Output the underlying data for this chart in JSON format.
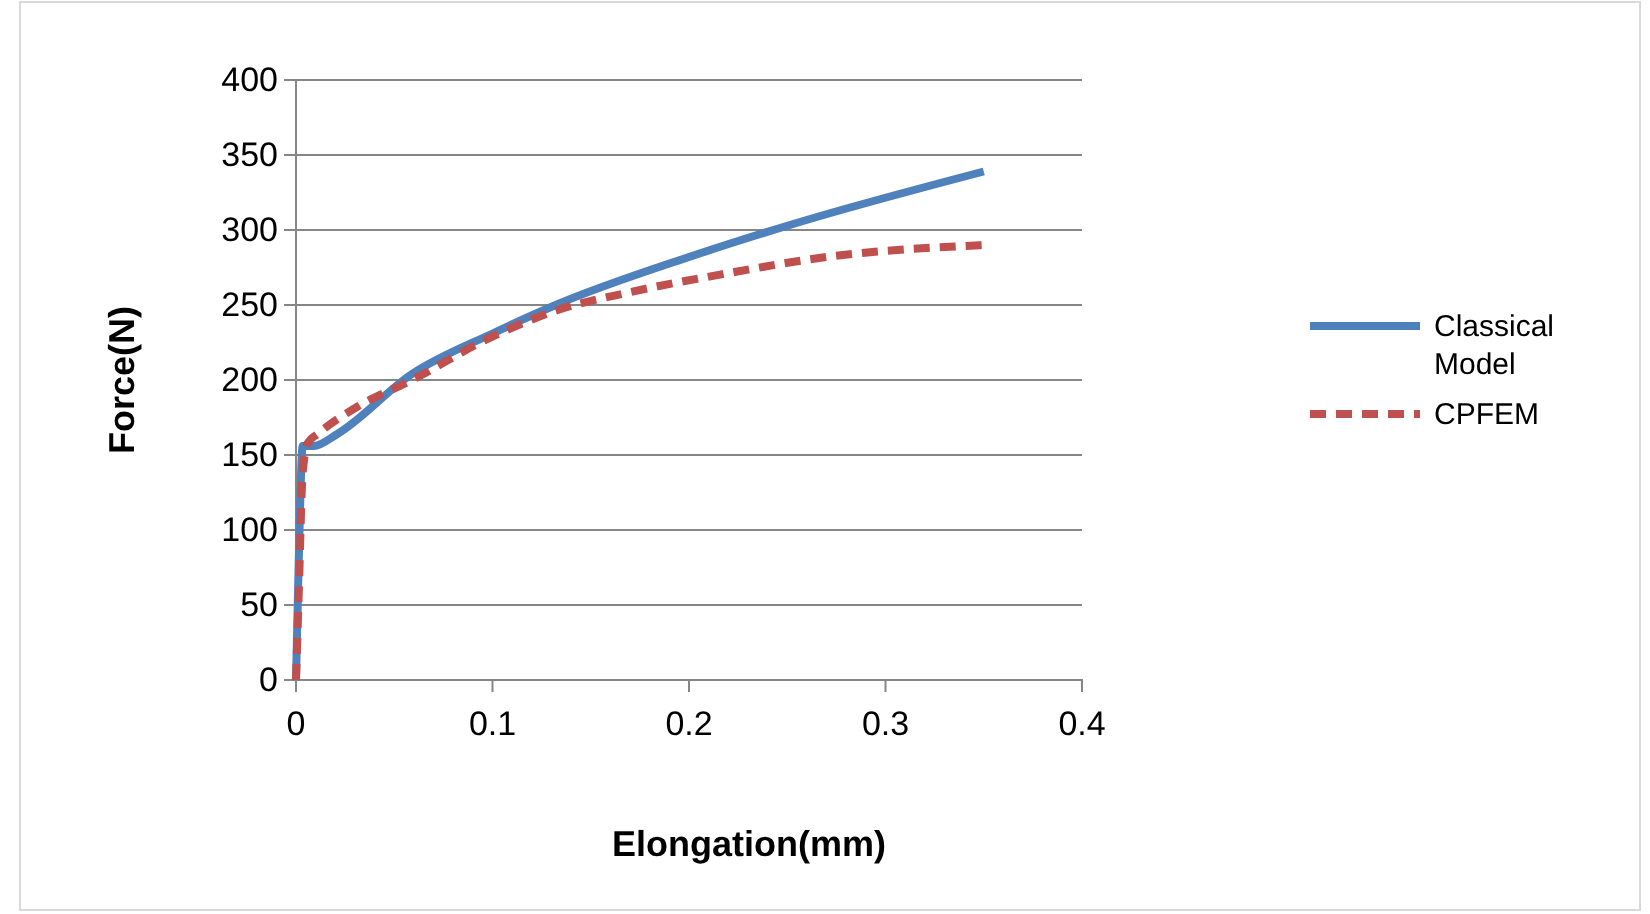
{
  "chart_data": {
    "type": "line",
    "xlabel": "Elongation(mm)",
    "ylabel": "Force(N)",
    "xlim": [
      0,
      0.4
    ],
    "xticks": [
      0,
      0.1,
      0.2,
      0.3,
      0.4
    ],
    "ylim": [
      0,
      400
    ],
    "yticks": [
      0,
      50,
      100,
      150,
      200,
      250,
      300,
      350,
      400
    ],
    "grid": "y",
    "legend": "right",
    "marker": "none",
    "series": [
      {
        "name": "Classical Model",
        "color": "#4f81bd",
        "line_style": "solid",
        "x": [
          0,
          0.0014,
          0.0034,
          0.009,
          0.021,
          0.059,
          0.1,
          0.134,
          0.2,
          0.253,
          0.35
        ],
        "values": [
          0,
          80,
          156,
          156,
          164,
          204,
          231,
          251,
          282,
          304,
          339
        ]
      },
      {
        "name": "CPFEM",
        "color": "#c0504d",
        "line_style": "dashed",
        "x": [
          0,
          0.0014,
          0.0034,
          0.006,
          0.011,
          0.031,
          0.059,
          0.1,
          0.134,
          0.168,
          0.219,
          0.27,
          0.35
        ],
        "values": [
          0,
          58,
          138,
          158,
          164,
          182,
          200,
          229,
          247,
          258,
          271,
          282,
          290
        ]
      }
    ]
  }
}
